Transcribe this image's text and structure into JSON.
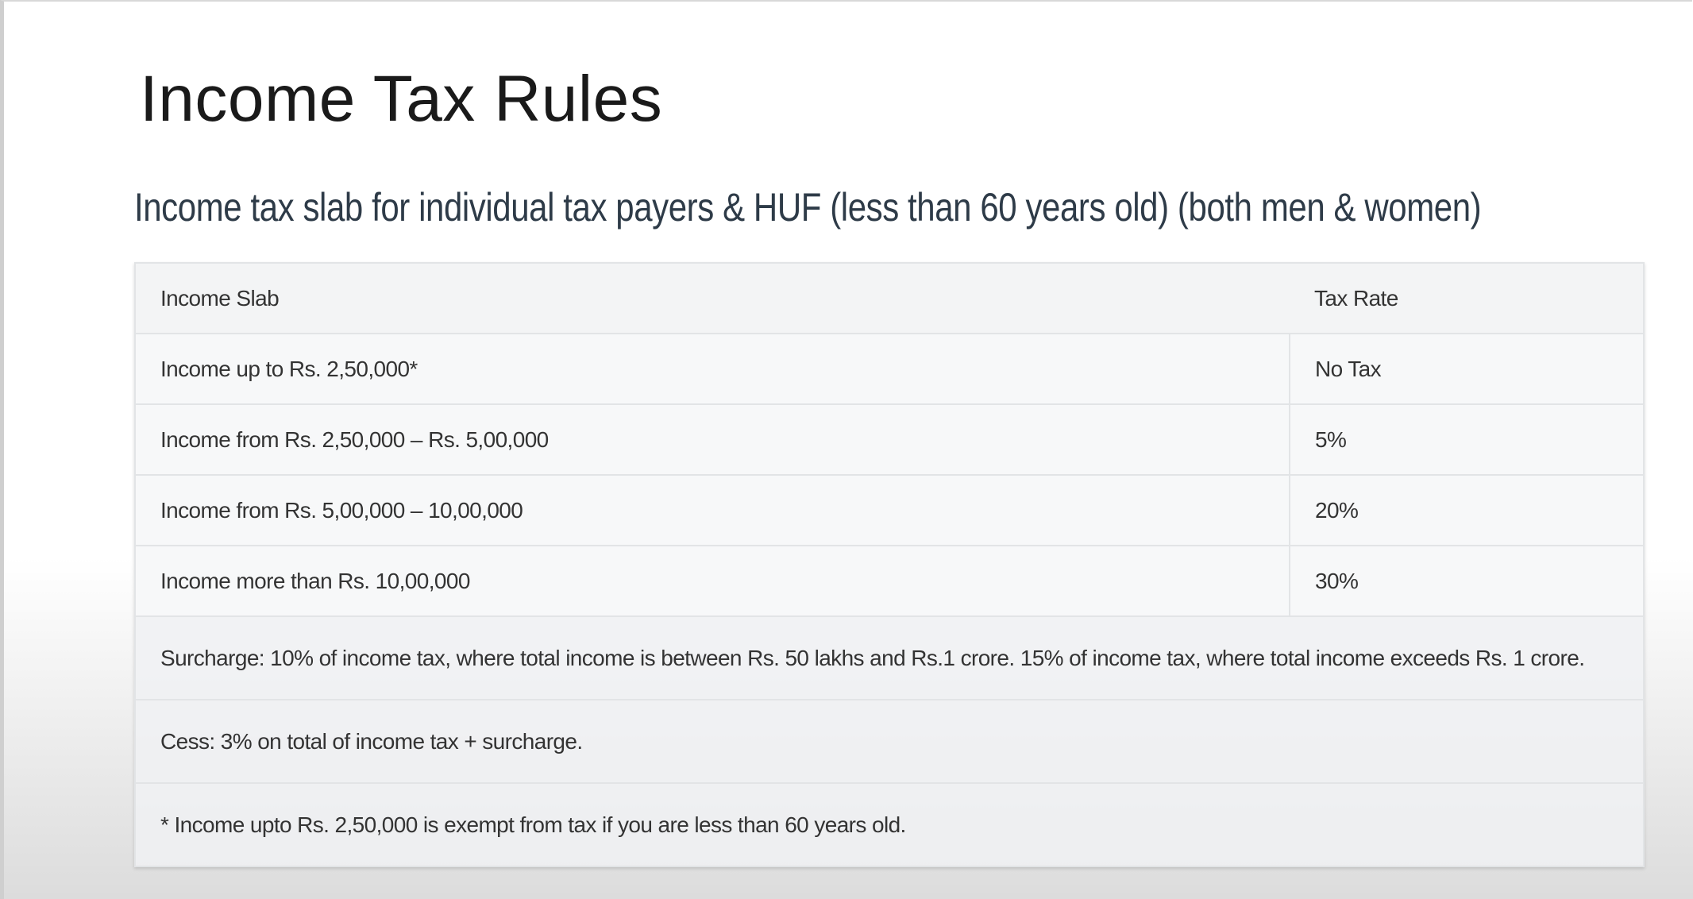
{
  "header": {
    "title": "Income Tax Rules",
    "subtitle": "Income tax slab for individual tax payers & HUF (less than 60 years old) (both men & women)"
  },
  "table": {
    "columns": [
      "Income Slab",
      "Tax Rate"
    ],
    "rows": [
      [
        "Income up to Rs. 2,50,000*",
        "No Tax"
      ],
      [
        "Income from Rs. 2,50,000 – Rs. 5,00,000",
        "5%"
      ],
      [
        "Income from Rs. 5,00,000 – 10,00,000",
        "20%"
      ],
      [
        "Income more than Rs. 10,00,000",
        "30%"
      ]
    ],
    "notes": [
      "Surcharge: 10% of income tax, where total income is between Rs. 50 lakhs and Rs.1 crore. 15% of income tax, where total income exceeds Rs. 1 crore.",
      "Cess: 3% on total of income tax + surcharge.",
      "* Income upto Rs. 2,50,000 is exempt from tax if you are less than 60 years old."
    ]
  }
}
